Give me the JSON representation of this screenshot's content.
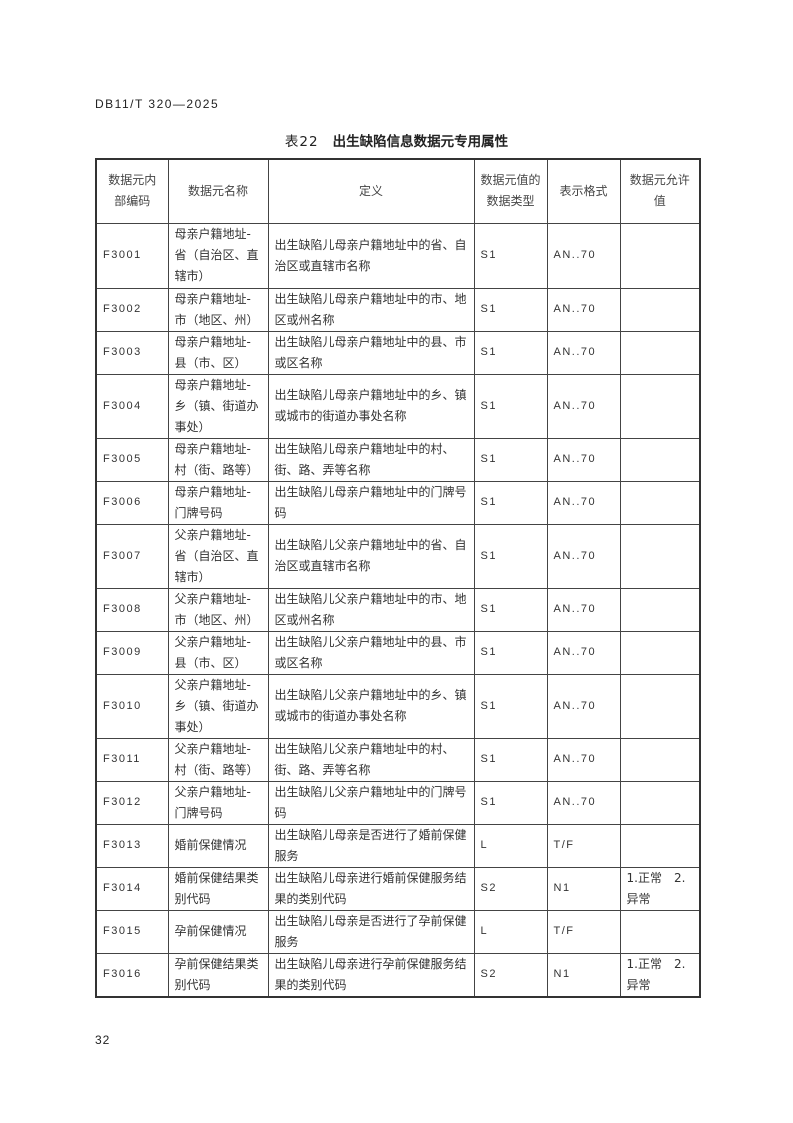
{
  "header": "DB11/T 320—2025",
  "table_title": {
    "number": "表22",
    "text": "出生缺陷信息数据元专用属性"
  },
  "columns": [
    "数据元内部编码",
    "数据元名称",
    "定义",
    "数据元值的数据类型",
    "表示格式",
    "数据元允许值"
  ],
  "rows": [
    {
      "code": "F3001",
      "name": "母亲户籍地址-省（自治区、直辖市）",
      "def": "出生缺陷儿母亲户籍地址中的省、自治区或直辖市名称",
      "type": "S1",
      "fmt": "AN..70",
      "allowed": ""
    },
    {
      "code": "F3002",
      "name": "母亲户籍地址-市（地区、州）",
      "def": "出生缺陷儿母亲户籍地址中的市、地区或州名称",
      "type": "S1",
      "fmt": "AN..70",
      "allowed": ""
    },
    {
      "code": "F3003",
      "name": "母亲户籍地址-县（市、区）",
      "def": "出生缺陷儿母亲户籍地址中的县、市或区名称",
      "type": "S1",
      "fmt": "AN..70",
      "allowed": ""
    },
    {
      "code": "F3004",
      "name": "母亲户籍地址-乡（镇、街道办事处）",
      "def": "出生缺陷儿母亲户籍地址中的乡、镇或城市的街道办事处名称",
      "type": "S1",
      "fmt": "AN..70",
      "allowed": ""
    },
    {
      "code": "F3005",
      "name": "母亲户籍地址-村（街、路等）",
      "def": "出生缺陷儿母亲户籍地址中的村、街、路、弄等名称",
      "type": "S1",
      "fmt": "AN..70",
      "allowed": ""
    },
    {
      "code": "F3006",
      "name": "母亲户籍地址-门牌号码",
      "def": "出生缺陷儿母亲户籍地址中的门牌号码",
      "type": "S1",
      "fmt": "AN..70",
      "allowed": ""
    },
    {
      "code": "F3007",
      "name": "父亲户籍地址-省（自治区、直辖市）",
      "def": "出生缺陷儿父亲户籍地址中的省、自治区或直辖市名称",
      "type": "S1",
      "fmt": "AN..70",
      "allowed": ""
    },
    {
      "code": "F3008",
      "name": "父亲户籍地址-市（地区、州）",
      "def": "出生缺陷儿父亲户籍地址中的市、地区或州名称",
      "type": "S1",
      "fmt": "AN..70",
      "allowed": ""
    },
    {
      "code": "F3009",
      "name": "父亲户籍地址-县（市、区）",
      "def": "出生缺陷儿父亲户籍地址中的县、市或区名称",
      "type": "S1",
      "fmt": "AN..70",
      "allowed": ""
    },
    {
      "code": "F3010",
      "name": "父亲户籍地址-乡（镇、街道办事处）",
      "def": "出生缺陷儿父亲户籍地址中的乡、镇或城市的街道办事处名称",
      "type": "S1",
      "fmt": "AN..70",
      "allowed": ""
    },
    {
      "code": "F3011",
      "name": "父亲户籍地址-村（街、路等）",
      "def": "出生缺陷儿父亲户籍地址中的村、街、路、弄等名称",
      "type": "S1",
      "fmt": "AN..70",
      "allowed": ""
    },
    {
      "code": "F3012",
      "name": "父亲户籍地址-门牌号码",
      "def": "出生缺陷儿父亲户籍地址中的门牌号码",
      "type": "S1",
      "fmt": "AN..70",
      "allowed": ""
    },
    {
      "code": "F3013",
      "name": "婚前保健情况",
      "def": "出生缺陷儿母亲是否进行了婚前保健服务",
      "type": "L",
      "fmt": "T/F",
      "allowed": ""
    },
    {
      "code": "F3014",
      "name": "婚前保健结果类别代码",
      "def": "出生缺陷儿母亲进行婚前保健服务结果的类别代码",
      "type": "S2",
      "fmt": "N1",
      "allowed": "1.正常　2.异常"
    },
    {
      "code": "F3015",
      "name": "孕前保健情况",
      "def": "出生缺陷儿母亲是否进行了孕前保健服务",
      "type": "L",
      "fmt": "T/F",
      "allowed": ""
    },
    {
      "code": "F3016",
      "name": "孕前保健结果类别代码",
      "def": "出生缺陷儿母亲进行孕前保健服务结果的类别代码",
      "type": "S2",
      "fmt": "N1",
      "allowed": "1.正常　2.异常"
    }
  ],
  "page_number": "32"
}
